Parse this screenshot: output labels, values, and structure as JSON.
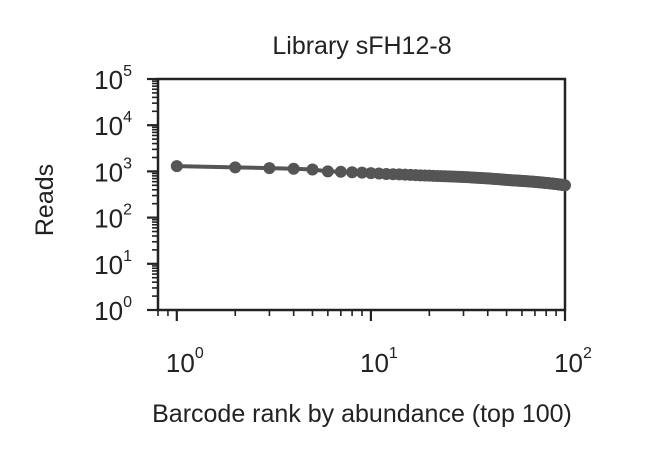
{
  "chart_data": {
    "type": "line",
    "title": "Library sFH12-8",
    "xlabel": "Barcode rank by abundance (top 100)",
    "ylabel": "Reads",
    "xscale": "log",
    "yscale": "log",
    "xlim": [
      0.8,
      100
    ],
    "ylim": [
      1,
      100000
    ],
    "x_ticks": [
      {
        "base": "10",
        "exp": "0",
        "value": 1
      },
      {
        "base": "10",
        "exp": "1",
        "value": 10
      },
      {
        "base": "10",
        "exp": "2",
        "value": 100
      }
    ],
    "y_ticks": [
      {
        "base": "10",
        "exp": "0",
        "value": 1
      },
      {
        "base": "10",
        "exp": "1",
        "value": 10
      },
      {
        "base": "10",
        "exp": "2",
        "value": 100
      },
      {
        "base": "10",
        "exp": "3",
        "value": 1000
      },
      {
        "base": "10",
        "exp": "4",
        "value": 10000
      },
      {
        "base": "10",
        "exp": "5",
        "value": 100000
      }
    ],
    "grid": false,
    "marker": "circle",
    "color": "#555555",
    "series": [
      {
        "x": [
          1,
          2,
          3,
          4,
          5,
          6,
          7,
          8,
          9,
          10,
          11,
          12,
          13,
          14,
          15,
          16,
          17,
          18,
          19,
          20,
          21,
          22,
          23,
          24,
          25,
          26,
          27,
          28,
          29,
          30,
          31,
          32,
          33,
          34,
          35,
          36,
          37,
          38,
          39,
          40,
          41,
          42,
          43,
          44,
          45,
          46,
          47,
          48,
          49,
          50,
          51,
          52,
          53,
          54,
          55,
          56,
          57,
          58,
          59,
          60,
          61,
          62,
          63,
          64,
          65,
          66,
          67,
          68,
          69,
          70,
          71,
          72,
          73,
          74,
          75,
          76,
          77,
          78,
          79,
          80,
          81,
          82,
          83,
          84,
          85,
          86,
          87,
          88,
          89,
          90,
          91,
          92,
          93,
          94,
          95,
          96,
          97,
          98,
          99,
          100
        ],
        "y": [
          1300,
          1220,
          1180,
          1140,
          1100,
          1000,
          980,
          960,
          940,
          920,
          900,
          880,
          870,
          860,
          850,
          840,
          830,
          820,
          815,
          810,
          800,
          795,
          790,
          785,
          780,
          775,
          770,
          765,
          760,
          755,
          750,
          745,
          740,
          735,
          730,
          725,
          720,
          715,
          710,
          705,
          700,
          695,
          690,
          685,
          680,
          675,
          670,
          665,
          660,
          655,
          650,
          647,
          644,
          641,
          638,
          635,
          632,
          629,
          626,
          623,
          620,
          617,
          614,
          611,
          608,
          605,
          602,
          599,
          596,
          593,
          590,
          587,
          584,
          581,
          578,
          575,
          572,
          569,
          566,
          563,
          560,
          557,
          554,
          551,
          548,
          545,
          542,
          539,
          536,
          533,
          530,
          527,
          524,
          521,
          518,
          515,
          512,
          509,
          506,
          500
        ]
      }
    ]
  }
}
